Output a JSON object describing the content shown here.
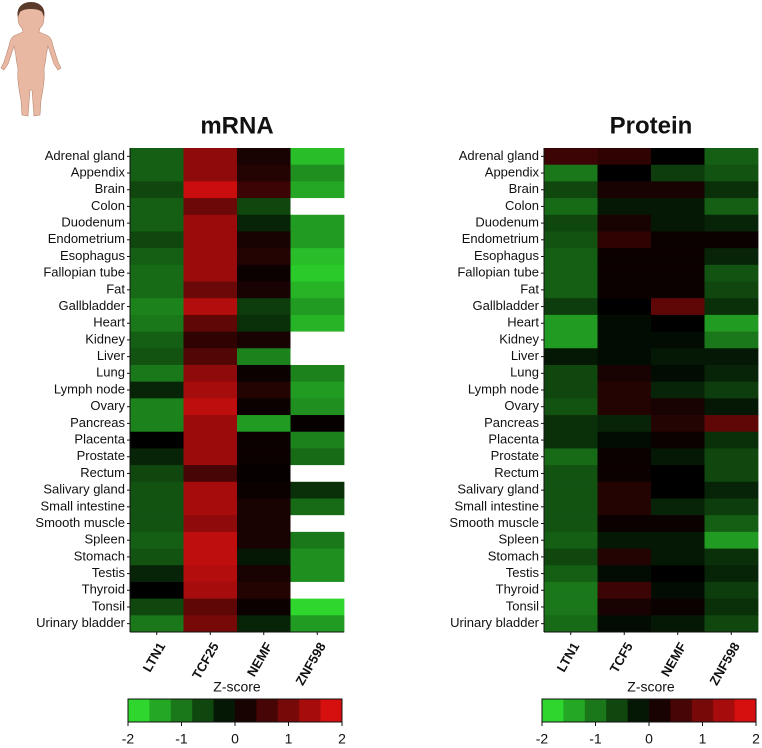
{
  "chart_data": [
    {
      "type": "heatmap",
      "title": "mRNA",
      "x": [
        "LTN1",
        "TCF25",
        "NEMF",
        "ZNF598"
      ],
      "y": [
        "Adrenal gland",
        "Appendix",
        "Brain",
        "Colon",
        "Duodenum",
        "Endometrium",
        "Esophagus",
        "Fallopian tube",
        "Fat",
        "Gallbladder",
        "Heart",
        "Kidney",
        "Liver",
        "Lung",
        "Lymph node",
        "Ovary",
        "Pancreas",
        "Placenta",
        "Prostate",
        "Rectum",
        "Salivary gland",
        "Small intestine",
        "Smooth muscle",
        "Spleen",
        "Stomach",
        "Testis",
        "Thyroid",
        "Tonsil",
        "Urinary bladder"
      ],
      "values": [
        [
          -0.8,
          1.2,
          0.2,
          -1.6
        ],
        [
          -0.8,
          1.2,
          0.3,
          -1.2
        ],
        [
          -0.6,
          1.7,
          0.5,
          -1.4
        ],
        [
          -0.8,
          0.9,
          -0.6,
          null
        ],
        [
          -0.8,
          1.3,
          -0.3,
          -1.3
        ],
        [
          -0.6,
          1.3,
          0.2,
          -1.3
        ],
        [
          -0.8,
          1.3,
          0.3,
          -1.6
        ],
        [
          -0.9,
          1.3,
          0.1,
          -1.7
        ],
        [
          -0.9,
          0.9,
          0.2,
          -1.5
        ],
        [
          -1.1,
          1.5,
          -0.5,
          -1.3
        ],
        [
          -1.0,
          0.8,
          -0.4,
          -1.5
        ],
        [
          -0.8,
          0.4,
          0.2,
          null
        ],
        [
          -0.7,
          0.7,
          -1.1,
          null
        ],
        [
          -1.0,
          1.2,
          0.1,
          -1.1
        ],
        [
          -0.3,
          1.4,
          0.3,
          -1.3
        ],
        [
          -1.1,
          1.6,
          0.1,
          -1.2
        ],
        [
          -1.1,
          1.3,
          -1.3,
          0.05
        ],
        [
          0,
          1.3,
          0.1,
          -1.1
        ],
        [
          -0.3,
          1.3,
          0.1,
          -0.9
        ],
        [
          -0.6,
          0.6,
          0.05,
          null
        ],
        [
          -0.7,
          1.4,
          0.1,
          -0.4
        ],
        [
          -0.7,
          1.4,
          0.2,
          -0.9
        ],
        [
          -0.7,
          1.2,
          0.2,
          null
        ],
        [
          -0.8,
          1.6,
          0.2,
          -1.0
        ],
        [
          -0.7,
          1.6,
          -0.2,
          -1.2
        ],
        [
          -0.3,
          1.5,
          0.2,
          -1.2
        ],
        [
          0,
          1.4,
          0.3,
          null
        ],
        [
          -0.6,
          0.8,
          0.1,
          -1.8
        ],
        [
          -1.0,
          1.0,
          -0.3,
          -1.3
        ]
      ],
      "colorbar_label": "Z-score",
      "zlim": [
        -2,
        2
      ],
      "zticks": [
        -2,
        -1,
        0,
        1,
        2
      ],
      "colors": [
        "#33ee33",
        "#000000",
        "#ee1111"
      ],
      "missing_color": "#ffffff"
    },
    {
      "type": "heatmap",
      "title": "Protein",
      "x": [
        "LTN1",
        "TCF5",
        "NEMF",
        "ZNF598"
      ],
      "y": [
        "Adrenal gland",
        "Appendix",
        "Brain",
        "Colon",
        "Duodenum",
        "Endometrium",
        "Esophagus",
        "Fallopian tube",
        "Fat",
        "Gallbladder",
        "Heart",
        "Kidney",
        "Liver",
        "Lung",
        "Lymph node",
        "Ovary",
        "Pancreas",
        "Placenta",
        "Prostate",
        "Rectum",
        "Salivary gland",
        "Small intestine",
        "Smooth muscle",
        "Spleen",
        "Stomach",
        "Testis",
        "Thyroid",
        "Tonsil",
        "Urinary bladder"
      ],
      "values": [
        [
          0.5,
          0.4,
          0,
          -0.8
        ],
        [
          -1.0,
          0,
          -0.5,
          -0.7
        ],
        [
          -0.6,
          0.2,
          0.2,
          -0.4
        ],
        [
          -0.9,
          -0.2,
          -0.2,
          -0.8
        ],
        [
          -0.6,
          0.2,
          -0.2,
          -0.3
        ],
        [
          -0.7,
          0.4,
          0.1,
          0.1
        ],
        [
          -0.8,
          0.1,
          0.1,
          -0.3
        ],
        [
          -0.8,
          0.1,
          0.1,
          -0.7
        ],
        [
          -0.8,
          0.1,
          0.1,
          -0.6
        ],
        [
          -0.5,
          0,
          0.8,
          -0.4
        ],
        [
          -1.3,
          -0.1,
          0,
          -1.3
        ],
        [
          -1.3,
          -0.1,
          -0.1,
          -1.0
        ],
        [
          -0.2,
          -0.1,
          -0.2,
          -0.2
        ],
        [
          -0.6,
          0.2,
          -0.1,
          -0.3
        ],
        [
          -0.6,
          0.3,
          -0.3,
          -0.5
        ],
        [
          -0.7,
          0.3,
          0.2,
          -0.2
        ],
        [
          -0.4,
          -0.3,
          0.3,
          0.8
        ],
        [
          -0.4,
          -0.1,
          0.1,
          -0.4
        ],
        [
          -0.9,
          0.1,
          -0.2,
          -0.6
        ],
        [
          -0.7,
          0.1,
          0,
          -0.6
        ],
        [
          -0.7,
          0.3,
          0,
          -0.3
        ],
        [
          -0.7,
          0.3,
          -0.3,
          -0.5
        ],
        [
          -0.7,
          0.1,
          0.1,
          -0.8
        ],
        [
          -0.8,
          -0.2,
          -0.2,
          -1.3
        ],
        [
          -0.6,
          0.3,
          -0.2,
          -0.4
        ],
        [
          -0.8,
          -0.1,
          0,
          -0.3
        ],
        [
          -1.0,
          0.5,
          -0.1,
          -0.5
        ],
        [
          -1.0,
          0.2,
          0.1,
          -0.4
        ],
        [
          -0.9,
          -0.1,
          -0.2,
          -0.6
        ]
      ],
      "colorbar_label": "Z-score",
      "zlim": [
        -2,
        2
      ],
      "zticks": [
        -2,
        -1,
        0,
        1,
        2
      ],
      "colors": [
        "#33ee33",
        "#000000",
        "#ee1111"
      ],
      "missing_color": "#ffffff"
    }
  ]
}
